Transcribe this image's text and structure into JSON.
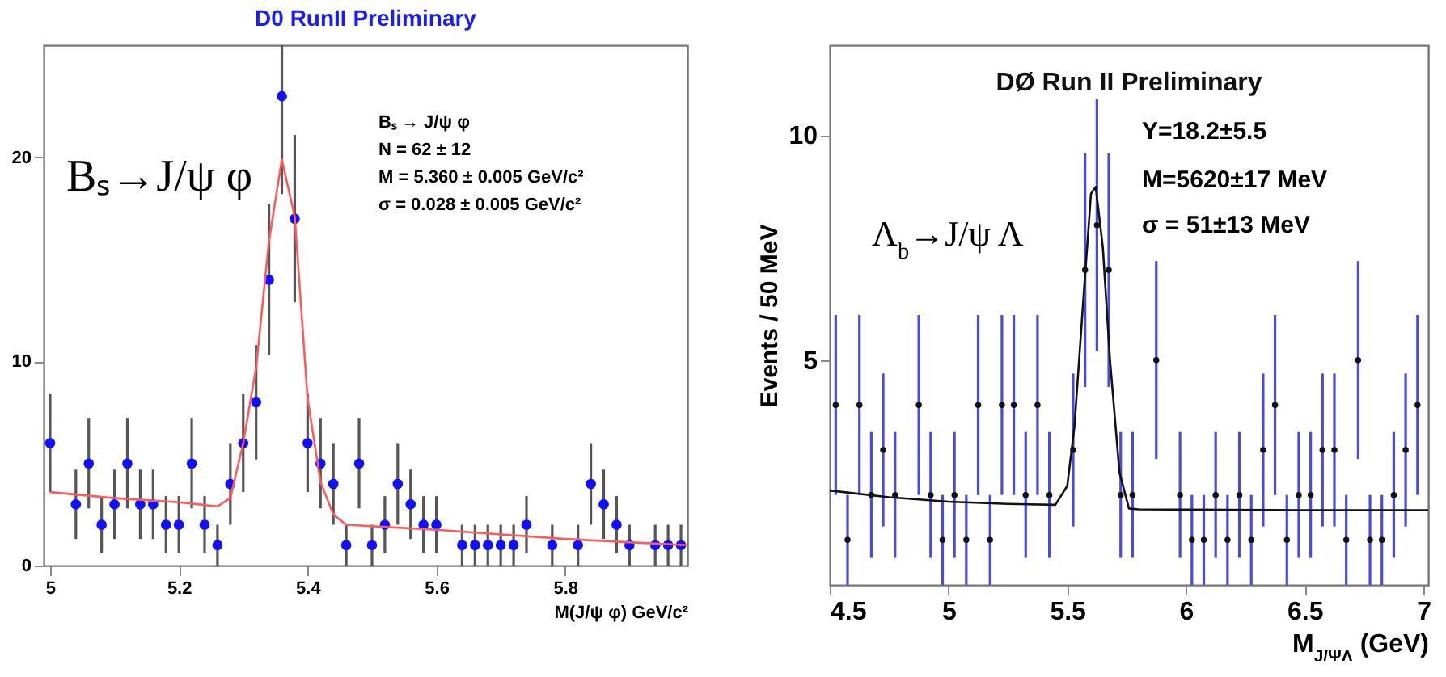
{
  "chart_data": [
    {
      "type": "scatter",
      "title": "D0 RunII  Preliminary",
      "xlabel": "M(J/ψ φ) GeV/c²",
      "grid": false,
      "xlim": [
        4.99,
        5.99
      ],
      "xticks": [
        5,
        5.2,
        5.4,
        5.6,
        5.8
      ],
      "ylim": [
        0,
        25.5
      ],
      "yticks": [
        0,
        10,
        20
      ],
      "annotations": [
        "Bₛ→J/ψ φ",
        "Bₛ → J/ψ φ",
        "N =  62 ± 12",
        "M =  5.360 ± 0.005 GeV/c²",
        "σ = 0.028 ± 0.005 GeV/c²"
      ],
      "series": [
        {
          "marker": "circle",
          "color": "#1010ff",
          "x": [
            5.0,
            5.04,
            5.06,
            5.08,
            5.1,
            5.12,
            5.14,
            5.16,
            5.18,
            5.2,
            5.22,
            5.24,
            5.26,
            5.28,
            5.3,
            5.32,
            5.34,
            5.36,
            5.38,
            5.4,
            5.42,
            5.44,
            5.46,
            5.48,
            5.5,
            5.52,
            5.54,
            5.56,
            5.58,
            5.6,
            5.64,
            5.66,
            5.68,
            5.7,
            5.72,
            5.74,
            5.78,
            5.82,
            5.84,
            5.86,
            5.88,
            5.9,
            5.94,
            5.96,
            5.98
          ],
          "values": [
            6,
            3,
            5,
            2,
            3,
            5,
            3,
            3,
            2,
            2,
            5,
            2,
            1,
            4,
            6,
            8,
            14,
            23,
            17,
            6,
            5,
            4,
            1,
            5,
            1,
            2,
            4,
            3,
            2,
            2,
            1,
            1,
            1,
            1,
            1,
            2,
            1,
            1,
            4,
            3,
            2,
            1,
            1,
            1,
            1
          ],
          "errors": [
            2.4,
            1.7,
            2.2,
            1.4,
            1.7,
            2.2,
            1.7,
            1.7,
            1.4,
            1.4,
            2.2,
            1.4,
            1,
            2,
            2.4,
            2.8,
            3.7,
            [
              18.2,
              25.5
            ],
            4.1,
            2.4,
            2.2,
            2,
            1,
            2.2,
            1,
            1.4,
            2,
            1.7,
            1.4,
            1.4,
            1,
            1,
            1,
            1,
            1,
            1.4,
            1,
            1,
            2,
            1.7,
            1.4,
            1,
            1,
            1,
            1
          ]
        },
        {
          "type": "line",
          "color": "#ff5a5a",
          "x": [
            5.0,
            5.1,
            5.2,
            5.26,
            5.28,
            5.3,
            5.32,
            5.34,
            5.36,
            5.38,
            5.4,
            5.42,
            5.44,
            5.46,
            5.6,
            5.8,
            5.99
          ],
          "values": [
            3.6,
            3.3,
            3.1,
            2.9,
            3.3,
            6,
            9.7,
            15.9,
            19.9,
            17.1,
            8.2,
            4.1,
            2.5,
            2.0,
            1.75,
            1.3,
            1.0
          ]
        }
      ]
    },
    {
      "type": "scatter",
      "title": "DØ Run II Preliminary",
      "xlabel": "M$_{J/ΨΛ}$ (GeV)",
      "ylabel": "Events / 50 MeV",
      "grid": false,
      "xlim": [
        4.5,
        7.02
      ],
      "xticks": [
        4.5,
        5,
        5.5,
        6,
        6.5,
        7
      ],
      "ylim": [
        0,
        12
      ],
      "yticks": [
        5,
        10
      ],
      "annotations": [
        "Y=18.2±5.5",
        "M=5620±17 MeV",
        "σ = 51±13 MeV",
        "Λ$_{b}$→J/ψ Λ"
      ],
      "series": [
        {
          "marker": "circle",
          "color": "#111111",
          "x": [
            4.525,
            4.575,
            4.625,
            4.675,
            4.725,
            4.775,
            4.875,
            4.925,
            4.975,
            5.025,
            5.075,
            5.125,
            5.175,
            5.225,
            5.275,
            5.325,
            5.375,
            5.425,
            5.525,
            5.575,
            5.625,
            5.675,
            5.725,
            5.775,
            5.875,
            5.975,
            6.025,
            6.075,
            6.125,
            6.175,
            6.225,
            6.275,
            6.325,
            6.375,
            6.425,
            6.475,
            6.525,
            6.575,
            6.625,
            6.675,
            6.725,
            6.775,
            6.825,
            6.875,
            6.925,
            6.975
          ],
          "values": [
            4,
            1,
            4,
            2,
            3,
            2,
            4,
            2,
            1,
            2,
            1,
            4,
            1,
            4,
            4,
            2,
            4,
            2,
            3,
            7,
            8,
            7,
            2,
            2,
            5,
            2,
            1,
            1,
            2,
            1,
            2,
            1,
            3,
            4,
            1,
            2,
            2,
            3,
            3,
            1,
            5,
            1,
            1,
            2,
            3,
            4
          ],
          "errors": [
            2,
            1,
            2,
            1.4,
            1.7,
            1.4,
            2,
            1.4,
            1,
            1.4,
            1,
            2,
            1,
            2,
            2,
            1.4,
            2,
            1.4,
            1.7,
            2.6,
            2.8,
            2.6,
            1.4,
            1.4,
            2.2,
            1.4,
            1,
            1,
            1.4,
            1,
            1.4,
            1,
            1.7,
            2,
            1,
            1.4,
            1.4,
            1.7,
            1.7,
            1,
            2.2,
            1,
            1,
            1.4,
            1.7,
            2
          ]
        },
        {
          "type": "line",
          "color": "#111111",
          "x": [
            4.5,
            4.75,
            5.0,
            5.25,
            5.45,
            5.5,
            5.53,
            5.57,
            5.6,
            5.62,
            5.65,
            5.68,
            5.72,
            5.76,
            5.8,
            6.5,
            7.02
          ],
          "values": [
            2.1,
            1.95,
            1.85,
            1.8,
            1.78,
            2.2,
            3.5,
            6.5,
            8.7,
            8.85,
            7.5,
            5,
            2.5,
            1.7,
            1.68,
            1.66,
            1.66
          ]
        }
      ]
    }
  ]
}
